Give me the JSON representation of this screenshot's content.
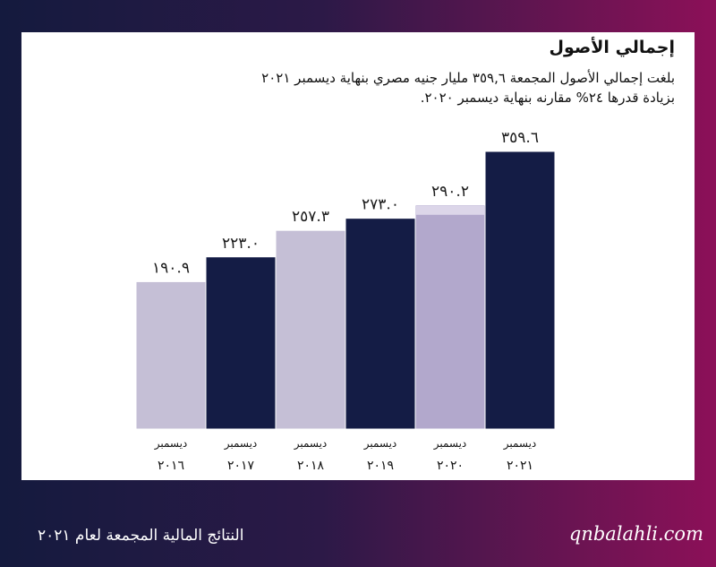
{
  "slide": {
    "title": "إجمالي الأصول",
    "subtitle_line1": "بلغت إجمالي الأصول المجمعة ٣٥٩,٦ مليار جنيه مصري بنهاية ديسمبر ٢٠٢١",
    "subtitle_line2": "بزيادة قدرها ٢٤% مقارنه بنهاية ديسمبر ٢٠٢٠."
  },
  "chart_data": {
    "type": "bar",
    "title": "إجمالي الأصول",
    "categories": [
      "ديسمبر ٢٠١٦",
      "ديسمبر ٢٠١٧",
      "ديسمبر ٢٠١٨",
      "ديسمبر ٢٠١٩",
      "ديسمبر ٢٠٢٠",
      "ديسمبر ٢٠٢١"
    ],
    "category_month": [
      "ديسمبر",
      "ديسمبر",
      "ديسمبر",
      "ديسمبر",
      "ديسمبر",
      "ديسمبر"
    ],
    "category_year": [
      "٢٠١٦",
      "٢٠١٧",
      "٢٠١٨",
      "٢٠١٩",
      "٢٠٢٠",
      "٢٠٢١"
    ],
    "values": [
      190.9,
      223.0,
      257.3,
      273.0,
      290.2,
      359.6
    ],
    "value_labels": [
      "١٩٠.٩",
      "٢٢٣.٠",
      "٢٥٧.٣",
      "٢٧٣.٠",
      "٢٩٠.٢",
      "٣٥٩.٦"
    ],
    "bar_colors": [
      "#c5bfd6",
      "#141c45",
      "#c5bfd6",
      "#141c45",
      "#b2a8cc",
      "#141c45"
    ],
    "ylim": [
      0,
      359.6
    ],
    "grid": false,
    "xlabel": "",
    "ylabel": ""
  },
  "footer": {
    "left_text": "النتائج المالية المجمعة لعام ٢٠٢١",
    "right_text": "qnbalahli.com"
  }
}
